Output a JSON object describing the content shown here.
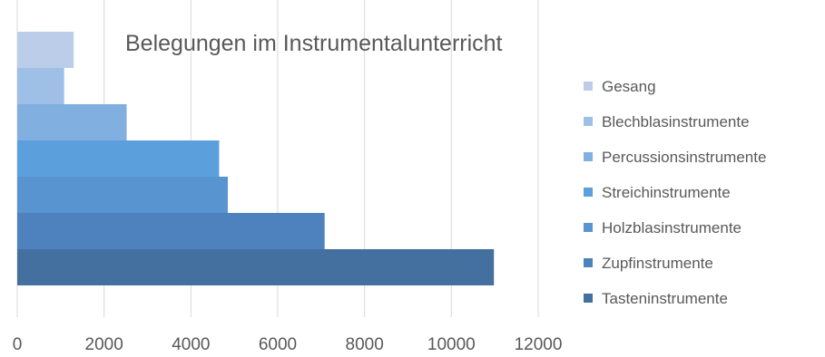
{
  "chart_data": {
    "type": "bar",
    "orientation": "horizontal",
    "title": "Belegungen  im Instrumentalunterricht",
    "xlabel": "",
    "ylabel": "",
    "xlim": [
      0,
      12000
    ],
    "x_ticks": [
      0,
      2000,
      4000,
      6000,
      8000,
      10000,
      12000
    ],
    "grid": "vertical",
    "legend_position": "right",
    "series": [
      {
        "name": "Gesang",
        "value": 1300,
        "color": "#bccde9"
      },
      {
        "name": "Blechblasinstrumente",
        "value": 1080,
        "color": "#9ebfe6"
      },
      {
        "name": "Percussionsinstrumente",
        "value": 2520,
        "color": "#80afe0"
      },
      {
        "name": "Streichinstrumente",
        "value": 4650,
        "color": "#5b9fdc"
      },
      {
        "name": "Holzblasinstrumente",
        "value": 4850,
        "color": "#5794d0"
      },
      {
        "name": "Zupfinstrumente",
        "value": 7080,
        "color": "#4d82be"
      },
      {
        "name": "Tasteninstrumente",
        "value": 10980,
        "color": "#44709f"
      }
    ]
  }
}
